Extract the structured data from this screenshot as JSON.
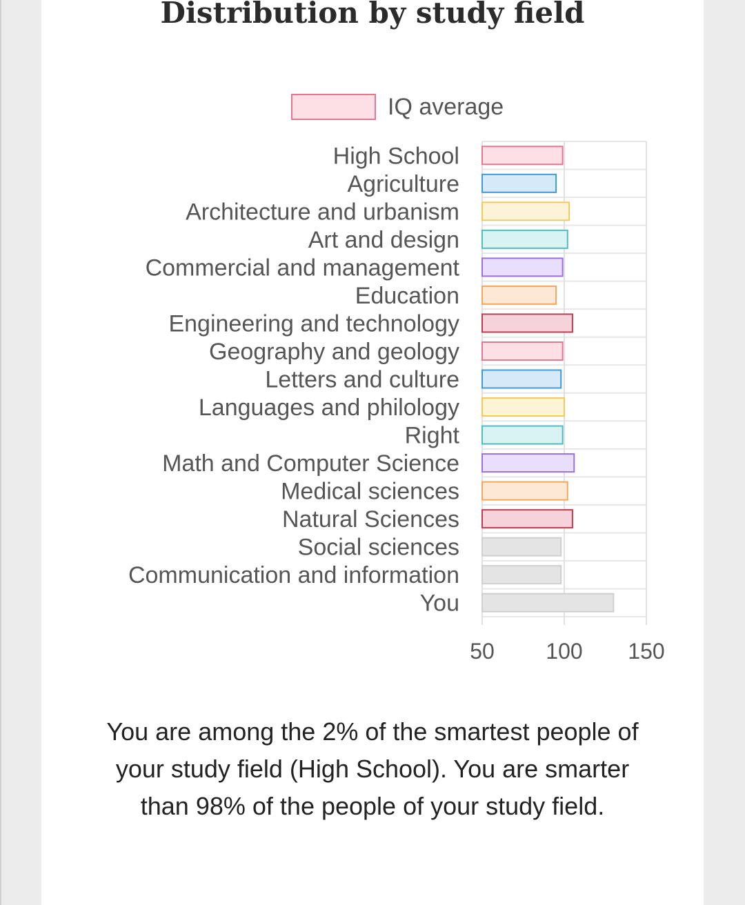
{
  "page": {
    "title": "Distribution by study field",
    "message": "You are among the 2% of the smartest people of your study field (High School). You are smarter than 98% of the people of your study field."
  },
  "chart_data": {
    "type": "bar",
    "orientation": "horizontal",
    "title": "Distribution by study field",
    "legend": {
      "label": "IQ average",
      "placement": "top",
      "fill": "#fde0e6",
      "stroke": "#e8758f"
    },
    "xlim": [
      50,
      150
    ],
    "xticks": [
      50,
      100,
      150
    ],
    "grid": true,
    "categories": [
      "High School",
      "Agriculture",
      "Architecture and urbanism",
      "Art and design",
      "Commercial and management",
      "Education",
      "Engineering and technology",
      "Geography and geology",
      "Letters and culture",
      "Languages and philology",
      "Right",
      "Math and Computer Science",
      "Medical sciences",
      "Natural Sciences",
      "Social sciences",
      "Communication and information",
      "You"
    ],
    "values": [
      99,
      95,
      103,
      102,
      99,
      95,
      105,
      99,
      98,
      100,
      99,
      106,
      102,
      105,
      98,
      98,
      130
    ],
    "colors": [
      {
        "fill": "#fde0e6",
        "stroke": "#e8758f"
      },
      {
        "fill": "#d6e9f8",
        "stroke": "#3f9ad6"
      },
      {
        "fill": "#fdf3d6",
        "stroke": "#f2ca5a"
      },
      {
        "fill": "#d9f2f2",
        "stroke": "#4fbdbd"
      },
      {
        "fill": "#e9defc",
        "stroke": "#9b6fe0"
      },
      {
        "fill": "#fde8d6",
        "stroke": "#f4a65a"
      },
      {
        "fill": "#f6d3da",
        "stroke": "#c23a50"
      },
      {
        "fill": "#fde0e6",
        "stroke": "#e8758f"
      },
      {
        "fill": "#d6e9f8",
        "stroke": "#3f9ad6"
      },
      {
        "fill": "#fdf3d6",
        "stroke": "#f2ca5a"
      },
      {
        "fill": "#d9f2f2",
        "stroke": "#4fbdbd"
      },
      {
        "fill": "#e9defc",
        "stroke": "#9b6fe0"
      },
      {
        "fill": "#fde8d6",
        "stroke": "#f4a65a"
      },
      {
        "fill": "#f6d3da",
        "stroke": "#c23a50"
      },
      {
        "fill": "#e4e4e4",
        "stroke": "#cfcfcf"
      },
      {
        "fill": "#e4e4e4",
        "stroke": "#cfcfcf"
      },
      {
        "fill": "#e4e4e4",
        "stroke": "#cfcfcf"
      }
    ]
  }
}
